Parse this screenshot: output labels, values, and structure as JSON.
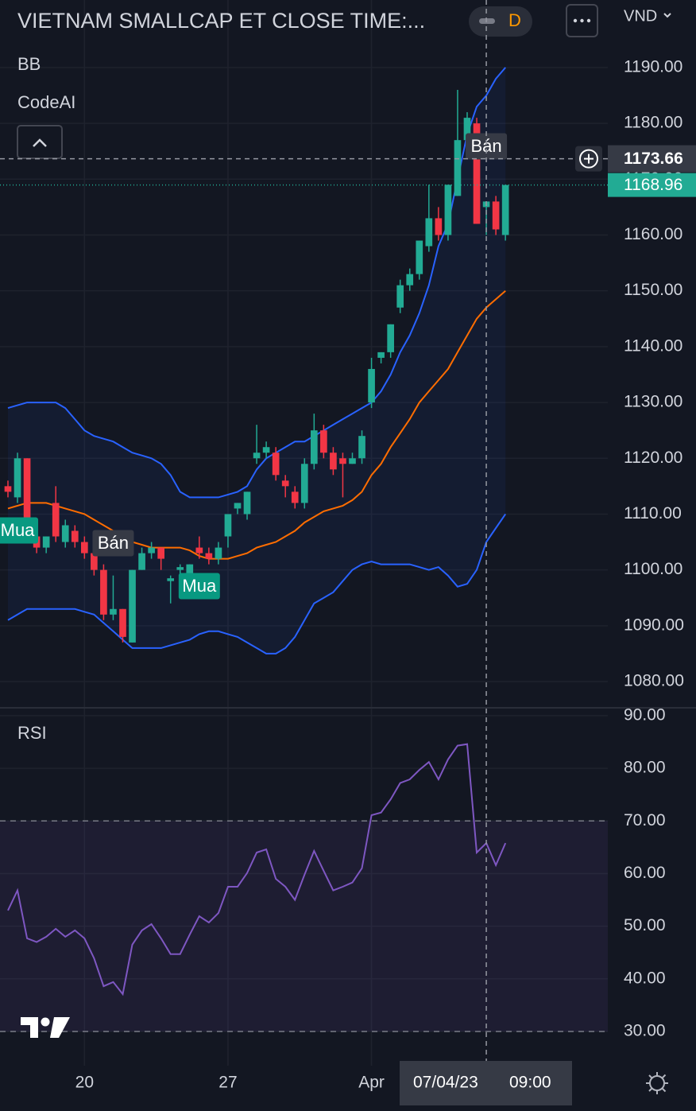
{
  "header": {
    "title": "VIETNAM SMALLCAP ET CLOSE TIME:...",
    "interval": "D",
    "currency": "VND"
  },
  "chart_data": [
    {
      "type": "candlestick",
      "indicators": [
        "BB",
        "CodeAI"
      ],
      "up_color": "#22ab94",
      "down_color": "#f23645",
      "open": [
        1115,
        1113,
        1120,
        1106,
        1104,
        1112,
        1105,
        1107,
        1105,
        1103,
        1100,
        1092,
        1093,
        1087,
        1100,
        1103,
        1104,
        1098,
        1100,
        1099,
        1104,
        1103,
        1102,
        1106,
        1111,
        1110,
        1120,
        1121,
        1121,
        1116,
        1114,
        1112,
        1119,
        1125,
        1121,
        1120,
        1119,
        1120,
        1130,
        1138,
        1139,
        1147,
        1151,
        1153,
        1158,
        1163,
        1160,
        1167,
        1177,
        1180,
        1165,
        1166,
        1160
      ],
      "high": [
        1116,
        1121,
        1120,
        1107,
        1106,
        1115,
        1109,
        1108,
        1106,
        1104,
        1101,
        1099,
        1093,
        1100,
        1104,
        1105,
        1104,
        1099,
        1101,
        1101,
        1106,
        1104,
        1105,
        1110,
        1112,
        1114,
        1126,
        1123,
        1122,
        1117,
        1115,
        1120,
        1128,
        1126,
        1122,
        1121,
        1121,
        1125,
        1138,
        1139,
        1144,
        1152,
        1154,
        1159,
        1169,
        1165,
        1169,
        1186,
        1182,
        1181,
        1166,
        1167,
        1169
      ],
      "low": [
        1113,
        1112,
        1107,
        1103,
        1103,
        1105,
        1104,
        1104,
        1102,
        1099,
        1091,
        1091,
        1087,
        1087,
        1100,
        1102,
        1100,
        1094,
        1099,
        1098,
        1102,
        1101,
        1101,
        1104,
        1110,
        1109,
        1119,
        1120,
        1116,
        1113,
        1111,
        1111,
        1118,
        1120,
        1117,
        1113,
        1119,
        1119,
        1129,
        1137,
        1138,
        1146,
        1150,
        1152,
        1157,
        1159,
        1159,
        1167,
        1176,
        1162,
        1160,
        1160,
        1159
      ],
      "close": [
        1114,
        1120,
        1108,
        1104,
        1106,
        1106,
        1108,
        1105,
        1103,
        1100,
        1092,
        1093,
        1088,
        1100,
        1103,
        1104,
        1102,
        1098.5,
        1100.5,
        1101,
        1103,
        1102,
        1104,
        1110,
        1112,
        1114,
        1121,
        1122,
        1117,
        1115,
        1112,
        1119,
        1125,
        1121,
        1118,
        1119,
        1120,
        1124,
        1136,
        1139,
        1144,
        1151,
        1153,
        1159,
        1163,
        1160,
        1169,
        1177,
        1181,
        1162,
        1166,
        1161,
        1168.96
      ],
      "bands": {
        "upper_color": "#2962ff",
        "middle_color": "#ff6d00",
        "upper": [
          1129,
          1129.5,
          1130,
          1130,
          1130,
          1130,
          1129,
          1127,
          1125,
          1124,
          1123.5,
          1123,
          1122,
          1121,
          1120.5,
          1120,
          1119,
          1117,
          1114,
          1113,
          1113,
          1113,
          1113,
          1113.5,
          1114,
          1115,
          1118,
          1120,
          1121,
          1122,
          1123,
          1123,
          1124,
          1125,
          1126,
          1127,
          1128,
          1129,
          1130,
          1132,
          1135,
          1139,
          1142,
          1146,
          1151,
          1158,
          1162,
          1170,
          1178,
          1183,
          1185,
          1188,
          1190
        ],
        "middle": [
          1111,
          1111.5,
          1112,
          1112,
          1112,
          1111.5,
          1111,
          1110.5,
          1110,
          1109,
          1108,
          1107,
          1106,
          1105,
          1104.5,
          1104,
          1104,
          1104,
          1104,
          1103.5,
          1102.5,
          1102,
          1102,
          1102,
          1102.5,
          1103,
          1104,
          1104.5,
          1105,
          1106,
          1107,
          1108.5,
          1109.5,
          1110.5,
          1111,
          1111.5,
          1112.5,
          1114,
          1117,
          1119,
          1122,
          1124.5,
          1127,
          1130,
          1132,
          1134,
          1136,
          1139,
          1142,
          1145,
          1147,
          1148.5,
          1150
        ],
        "lower": [
          1091,
          1092,
          1093,
          1093,
          1093,
          1093,
          1093,
          1093,
          1092.5,
          1092,
          1090.5,
          1089,
          1087.5,
          1086,
          1086,
          1086,
          1086,
          1086.5,
          1087,
          1087.5,
          1088.5,
          1089,
          1089,
          1088.5,
          1088,
          1087,
          1086,
          1085,
          1085,
          1086,
          1088,
          1091,
          1094,
          1095,
          1096,
          1098,
          1100,
          1101,
          1101.5,
          1101,
          1101,
          1101,
          1101,
          1100.5,
          1100,
          1100.5,
          1099,
          1097,
          1097.5,
          1100,
          1105,
          1107.5,
          1110
        ]
      },
      "signals": [
        {
          "index": 1,
          "label": "Mua",
          "kind": "buy"
        },
        {
          "index": 11,
          "label": "Bán",
          "kind": "sell"
        },
        {
          "index": 20,
          "label": "Mua",
          "kind": "buy"
        },
        {
          "index": 50,
          "label": "Bán",
          "kind": "sell"
        }
      ],
      "xlim": [
        -0.83,
        62.7
      ],
      "xticks": [
        {
          "value": 8,
          "label": "20"
        },
        {
          "value": 23,
          "label": "27"
        },
        {
          "value": 38,
          "label": "Apr"
        }
      ],
      "ylim": [
        1075.3,
        1202.1
      ],
      "yticks": [
        {
          "value": 1080,
          "label": "1080.00"
        },
        {
          "value": 1090,
          "label": "1090.00"
        },
        {
          "value": 1100,
          "label": "1100.00"
        },
        {
          "value": 1110,
          "label": "1110.00"
        },
        {
          "value": 1120,
          "label": "1120.00"
        },
        {
          "value": 1130,
          "label": "1130.00"
        },
        {
          "value": 1140,
          "label": "1140.00"
        },
        {
          "value": 1150,
          "label": "1150.00"
        },
        {
          "value": 1160,
          "label": "1160.00"
        },
        {
          "value": 1170,
          "label": "1170.00"
        },
        {
          "value": 1180,
          "label": "1180.00"
        },
        {
          "value": 1190,
          "label": "1190.00"
        }
      ],
      "grid": true,
      "crosshair": {
        "index": 50,
        "price": 1173.66,
        "date": "07/04/23",
        "time": "09:00"
      }
    },
    {
      "type": "line",
      "title": "RSI",
      "series": [
        {
          "color": "#7e57c2",
          "values": [
            53,
            56.8,
            47.7,
            47,
            48,
            49.5,
            48,
            49.2,
            47.7,
            43.9,
            38.6,
            39.4,
            37.1,
            46.5,
            49.2,
            50.4,
            47.7,
            44.7,
            44.7,
            48.4,
            51.9,
            50.7,
            52.5,
            57.5,
            57.5,
            60.1,
            64,
            64.6,
            59,
            57.5,
            55,
            59.8,
            64.3,
            60.5,
            56.8,
            57.5,
            58.3,
            61,
            71.1,
            71.6,
            74.1,
            77.2,
            77.9,
            79.7,
            81.2,
            77.9,
            81.7,
            84.3,
            84.6,
            64,
            65.8,
            61.6,
            65.8
          ]
        }
      ],
      "band": [
        30,
        70
      ],
      "band_color": "#7e57c2",
      "xlim": [
        -0.83,
        62.7
      ],
      "ylim": [
        23.5,
        91.5
      ],
      "yticks": [
        {
          "value": 30,
          "label": "30.00"
        },
        {
          "value": 40,
          "label": "40.00"
        },
        {
          "value": 50,
          "label": "50.00"
        },
        {
          "value": 60,
          "label": "60.00"
        },
        {
          "value": 70,
          "label": "70.00"
        },
        {
          "value": 80,
          "label": "80.00"
        },
        {
          "value": 90,
          "label": "90.00"
        }
      ],
      "grid": true
    }
  ]
}
